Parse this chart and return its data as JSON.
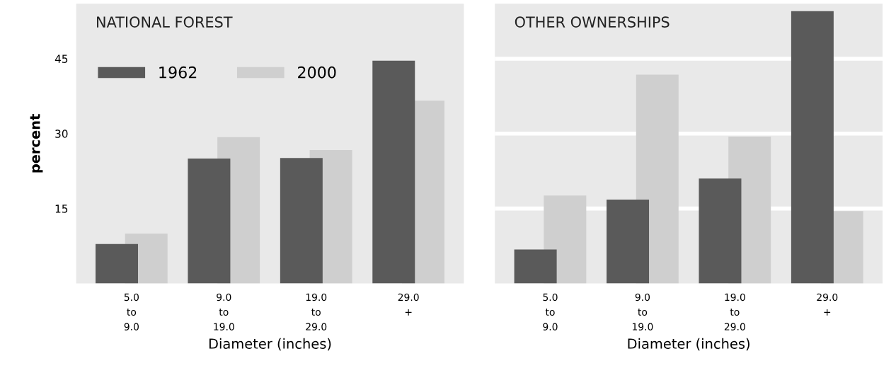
{
  "chart_data": [
    {
      "type": "bar",
      "title": "NATIONAL FOREST",
      "categories": [
        "5.0\nto\n9.0",
        "9.0\nto\n19.0",
        "19.0\nto\n29.0",
        "29.0\n+"
      ],
      "xlabel": "Diameter (inches)",
      "ylabel": "percent",
      "series": [
        {
          "name": "1962",
          "color": "#5a5a5a",
          "values": [
            7.9,
            25,
            25.1,
            44.6
          ]
        },
        {
          "name": "2000",
          "color": "#cfcfcf",
          "values": [
            10,
            29.3,
            26.7,
            36.6
          ]
        }
      ],
      "ylim": [
        0,
        56
      ],
      "yticks": [
        15,
        30,
        45
      ],
      "grid": false,
      "legend": "top left"
    },
    {
      "type": "bar",
      "title": "OTHER OWNERSHIPS",
      "categories": [
        "5.0\nto\n9.0",
        "9.0\nto\n19.0",
        "19.0\nto\n29.0",
        "29.0\n+"
      ],
      "xlabel": "Diameter (inches)",
      "series": [
        {
          "color": "#5a5a5a",
          "values": [
            6.8,
            16.8,
            21,
            54.5
          ]
        },
        {
          "color": "#cfcfcf",
          "values": [
            17.6,
            41.8,
            29.4,
            14.5
          ]
        }
      ],
      "ylim": [
        0,
        56
      ],
      "yticks": [
        {
          "value": 15,
          "label": null
        },
        {
          "value": 30,
          "label": null
        },
        {
          "value": 45,
          "label": null
        }
      ],
      "grid": "y",
      "tick_labels": "x"
    }
  ]
}
